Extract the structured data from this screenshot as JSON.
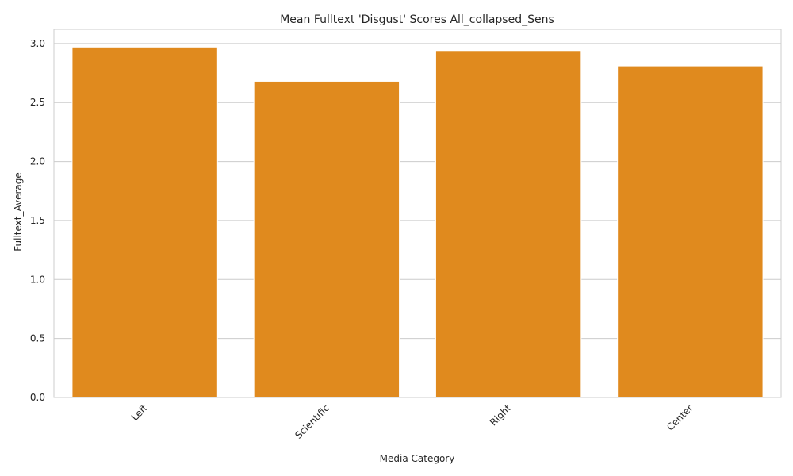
{
  "chart_data": {
    "type": "bar",
    "title": "Mean Fulltext 'Disgust' Scores All_collapsed_Sens",
    "xlabel": "Media Category",
    "ylabel": "Fulltext_Average",
    "categories": [
      "Left",
      "Scientific",
      "Right",
      "Center"
    ],
    "values": [
      2.97,
      2.68,
      2.94,
      2.81
    ],
    "ylim": [
      0,
      3.12
    ],
    "yticks": [
      "0.0",
      "0.5",
      "1.0",
      "1.5",
      "2.0",
      "2.5",
      "3.0"
    ],
    "grid": "horizontal",
    "bar_color": "#e08a1e",
    "x_tick_rotation": 45
  }
}
